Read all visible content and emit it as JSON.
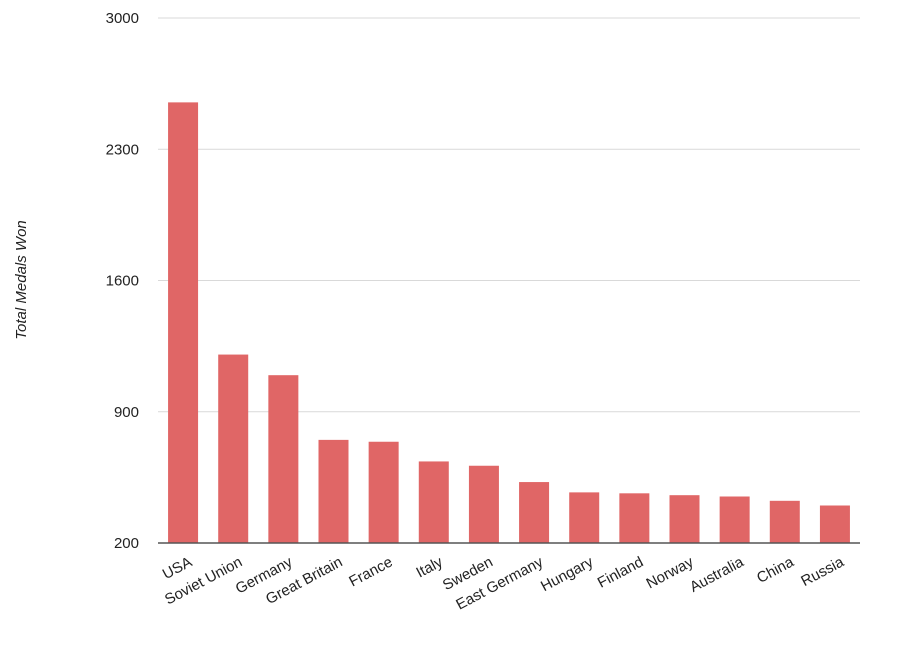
{
  "colors": {
    "bar": "#e06666",
    "gridline": "#d9d9d9",
    "axis": "#555555",
    "text": "#222222",
    "background": "#ffffff"
  },
  "chart_data": {
    "type": "bar",
    "title": "",
    "xlabel": "",
    "ylabel": "Total Medals Won",
    "categories": [
      "USA",
      "Soviet Union",
      "Germany",
      "Great Britain",
      "France",
      "Italy",
      "Sweden",
      "East Germany",
      "Hungary",
      "Finland",
      "Norway",
      "Australia",
      "China",
      "Russia"
    ],
    "values": [
      2550,
      1205,
      1095,
      750,
      740,
      635,
      612,
      525,
      470,
      465,
      455,
      448,
      425,
      400
    ],
    "ylim": [
      200,
      3000
    ],
    "yticks": [
      200,
      900,
      1600,
      2300,
      3000
    ],
    "grid": true,
    "legend": "none"
  }
}
